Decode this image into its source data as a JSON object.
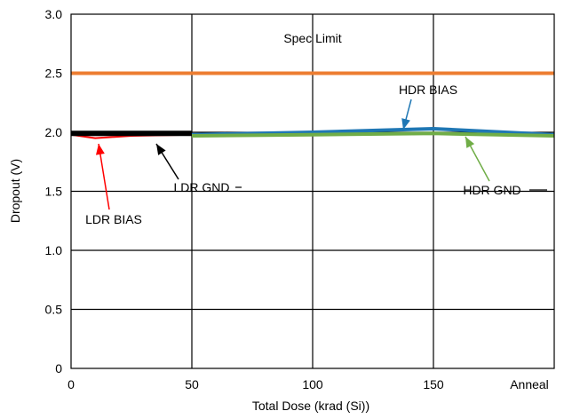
{
  "chart_data": {
    "type": "line",
    "title": "",
    "xlabel": "Total Dose (krad (Si))",
    "ylabel": "Dropout (V)",
    "xlim": [
      0,
      200
    ],
    "ylim": [
      0,
      3.0
    ],
    "x_ticks": [
      {
        "value": 0,
        "label": "0"
      },
      {
        "value": 50,
        "label": "50"
      },
      {
        "value": 100,
        "label": "100"
      },
      {
        "value": 150,
        "label": "150"
      },
      {
        "value": 200,
        "label": "Anneal"
      }
    ],
    "y_ticks": [
      {
        "value": 0,
        "label": "0"
      },
      {
        "value": 0.5,
        "label": "0.5"
      },
      {
        "value": 1.0,
        "label": "1.0"
      },
      {
        "value": 1.5,
        "label": "1.5"
      },
      {
        "value": 2.0,
        "label": "2.0"
      },
      {
        "value": 2.5,
        "label": "2.5"
      },
      {
        "value": 3.0,
        "label": "3.0"
      }
    ],
    "grid": true,
    "series": [
      {
        "name": "Spec Limit",
        "color": "#ED7D31",
        "x": [
          0,
          200
        ],
        "y": [
          2.5,
          2.5
        ]
      },
      {
        "name": "LDR BIAS",
        "color": "#FF0000",
        "x": [
          0,
          10,
          25,
          50
        ],
        "y": [
          1.98,
          1.95,
          1.97,
          1.98
        ]
      },
      {
        "name": "LDR GND",
        "color": "#000000",
        "x": [
          0,
          10,
          25,
          50
        ],
        "y": [
          1.99,
          1.99,
          1.99,
          1.99
        ]
      },
      {
        "name": "HDR BIAS",
        "color": "#1F77B4",
        "x": [
          50,
          100,
          150,
          200
        ],
        "y": [
          1.98,
          2.0,
          2.03,
          1.98
        ]
      },
      {
        "name": "HDR GND",
        "color": "#70AD47",
        "x": [
          50,
          100,
          150,
          200
        ],
        "y": [
          1.97,
          1.98,
          1.99,
          1.97
        ]
      }
    ],
    "annotations": [
      {
        "text": "Spec Limit",
        "series": "Spec Limit"
      },
      {
        "text": "HDR BIAS",
        "series": "HDR BIAS",
        "arrow_color": "#1F77B4"
      },
      {
        "text": "LDR GND",
        "series": "LDR GND",
        "arrow_color": "#000000"
      },
      {
        "text": "HDR GND",
        "series": "HDR GND",
        "arrow_color": "#70AD47"
      },
      {
        "text": "LDR BIAS",
        "series": "LDR BIAS",
        "arrow_color": "#FF0000"
      }
    ]
  }
}
